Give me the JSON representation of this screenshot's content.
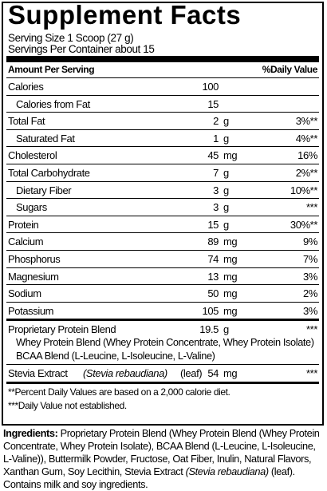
{
  "title": "Supplement Facts",
  "serving_size": "Serving Size 1 Scoop (27 g)",
  "servings_per_container": "Servings Per Container about 15",
  "header": {
    "amount": "Amount Per Serving",
    "daily_value": "%Daily Value"
  },
  "nutrients": [
    {
      "name": "Calories",
      "amount": "100"
    },
    {
      "name": "Calories from Fat",
      "amount": "15",
      "indent": true
    },
    {
      "name": "Total Fat",
      "amount": "2",
      "unit": "g",
      "daily_value": "3%**"
    },
    {
      "name": "Saturated Fat",
      "amount": "1",
      "unit": "g",
      "daily_value": "4%**",
      "indent": true
    },
    {
      "name": "Cholesterol",
      "amount": "45",
      "unit": "mg",
      "daily_value": "16%"
    },
    {
      "name": "Total Carbohydrate",
      "amount": "7",
      "unit": "g",
      "daily_value": "2%**"
    },
    {
      "name": "Dietary Fiber",
      "amount": "3",
      "unit": "g",
      "daily_value": "10%**",
      "indent": true
    },
    {
      "name": "Sugars",
      "amount": "3",
      "unit": "g",
      "daily_value": "***",
      "indent": true
    },
    {
      "name": "Protein",
      "amount": "15",
      "unit": "g",
      "daily_value": "30%**"
    },
    {
      "name": "Calcium",
      "amount": "89",
      "unit": "mg",
      "daily_value": "9%"
    },
    {
      "name": "Phosphorus",
      "amount": "74",
      "unit": "mg",
      "daily_value": "7%"
    },
    {
      "name": "Magnesium",
      "amount": "13",
      "unit": "mg",
      "daily_value": "3%"
    },
    {
      "name": "Sodium",
      "amount": "50",
      "unit": "mg",
      "daily_value": "2%"
    },
    {
      "name": "Potassium",
      "amount": "105",
      "unit": "mg",
      "daily_value": "3%"
    }
  ],
  "blend": {
    "name": "Proprietary Protein Blend",
    "amount": "19.5",
    "unit": "g",
    "daily_value": "***",
    "components": [
      "Whey Protein Blend (Whey Protein Concentrate, Whey Protein Isolate)",
      "BCAA Blend (L-Leucine, L-Isoleucine, L-Valine)"
    ]
  },
  "stevia": {
    "name": "Stevia Extract",
    "latin": "(Stevia rebaudiana)",
    "part": "(leaf)",
    "amount": "54",
    "unit": "mg",
    "daily_value": "***"
  },
  "footnotes": [
    "**Percent Daily Values are based on a 2,000 calorie diet.",
    "***Daily Value not established."
  ],
  "ingredients": {
    "label": "Ingredients:",
    "text": "Proprietary Protein Blend (Whey Protein Blend (Whey Protein Concentrate, Whey Protein Isolate), BCAA Blend (L-Leucine, L-Isoleucine, L-Valine)), Buttermilk Powder, Fructose, Oat Fiber, Inulin, Natural Flavors, Xanthan Gum, Soy Lecithin, Stevia Extract",
    "latin": "(Stevia rebaudiana)",
    "text_end": "(leaf). Contains milk and soy ingredients."
  }
}
